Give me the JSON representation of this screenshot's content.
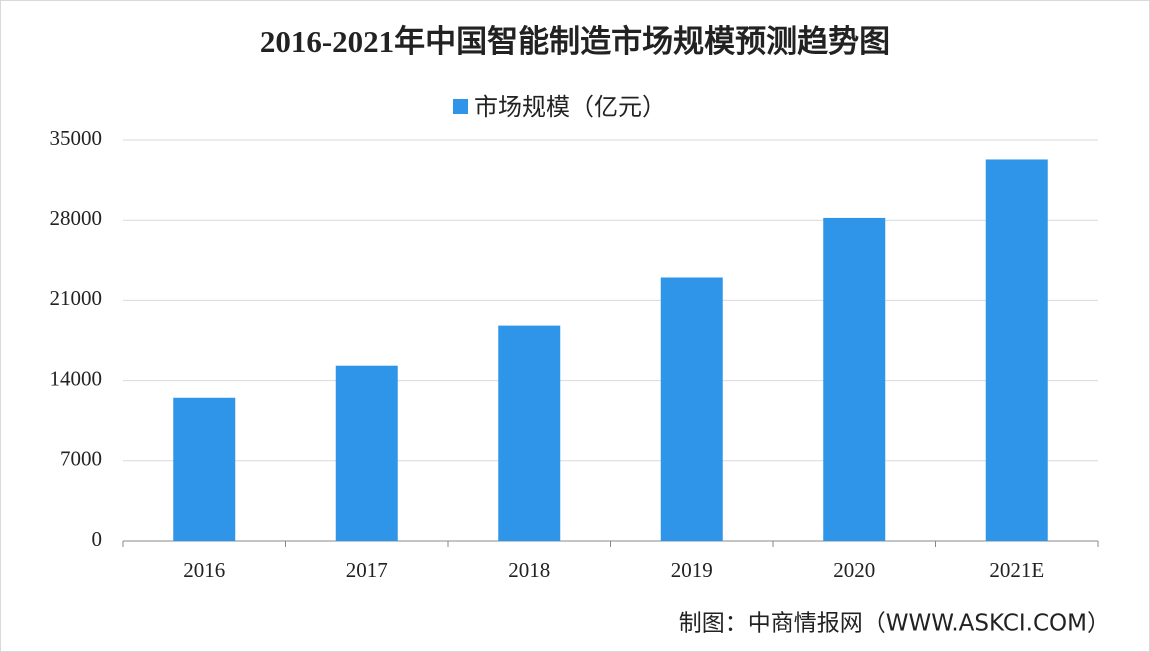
{
  "chart_data": {
    "type": "bar",
    "title": "2016-2021年中国智能制造市场规模预测趋势图",
    "categories": [
      "2016",
      "2017",
      "2018",
      "2019",
      "2020",
      "2021E"
    ],
    "series": [
      {
        "name": "市场规模（亿元）",
        "color": "#2f95e8",
        "values": [
          12500,
          15300,
          18800,
          23000,
          28200,
          33300
        ]
      }
    ],
    "ylim": [
      0,
      35000
    ],
    "yticks": [
      0,
      7000,
      14000,
      21000,
      28000,
      35000
    ],
    "grid": true,
    "legend": "top",
    "source": "制图：中商情报网（WWW.ASKCI.COM）"
  }
}
